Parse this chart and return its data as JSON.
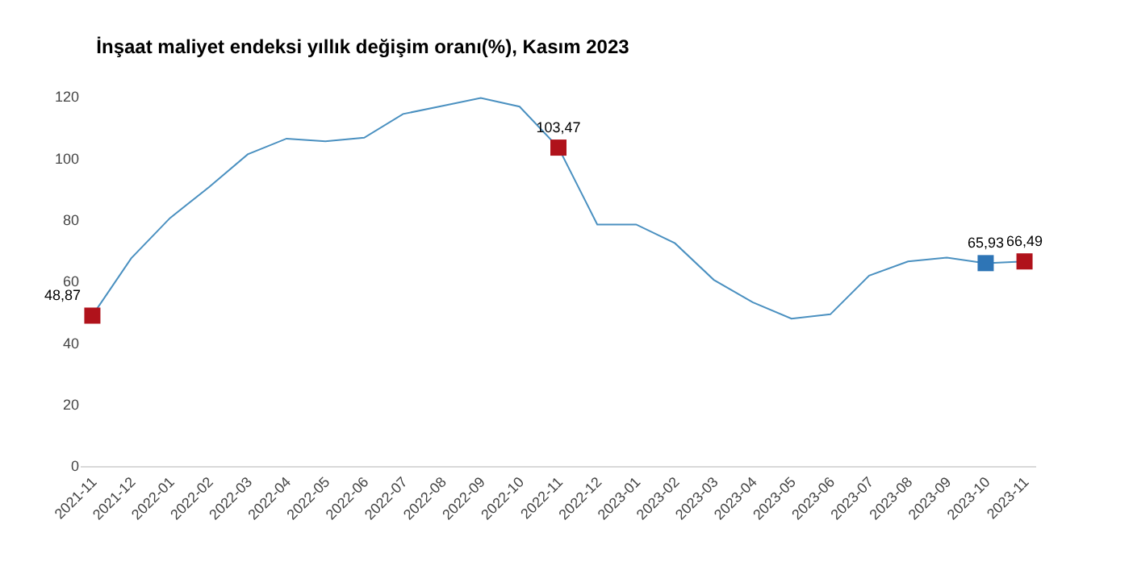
{
  "chart_data": {
    "type": "line",
    "title": "İnşaat maliyet endeksi yıllık değişim oranı(%), Kasım 2023",
    "categories": [
      "2021-11",
      "2021-12",
      "2022-01",
      "2022-02",
      "2022-03",
      "2022-04",
      "2022-05",
      "2022-06",
      "2022-07",
      "2022-08",
      "2022-09",
      "2022-10",
      "2022-11",
      "2022-12",
      "2023-01",
      "2023-02",
      "2023-03",
      "2023-04",
      "2023-05",
      "2023-06",
      "2023-07",
      "2023-08",
      "2023-09",
      "2023-10",
      "2023-11"
    ],
    "series": [
      {
        "color": "#4a90c0",
        "marker": "none",
        "values": [
          48.9,
          67.5,
          80.6,
          90.6,
          101.3,
          106.4,
          105.5,
          106.7,
          114.4,
          117,
          119.6,
          116.8,
          103.5,
          78.5,
          78.5,
          72.4,
          60.5,
          53.2,
          47.9,
          49.3,
          61.9,
          66.5,
          67.7,
          65.9,
          66.5
        ]
      },
      {
        "type": "scatter",
        "marker": "square",
        "colors": [
          "#b0121b",
          null,
          null,
          null,
          null,
          null,
          null,
          null,
          null,
          null,
          null,
          null,
          "#b0121b",
          null,
          null,
          null,
          null,
          null,
          null,
          null,
          null,
          null,
          null,
          "#2e75b6",
          "#b0121b"
        ],
        "values": [
          48.87,
          null,
          null,
          null,
          null,
          null,
          null,
          null,
          null,
          null,
          null,
          null,
          103.47,
          null,
          null,
          null,
          null,
          null,
          null,
          null,
          null,
          null,
          null,
          65.93,
          66.49
        ],
        "value_labels": [
          "48,87",
          null,
          null,
          null,
          null,
          null,
          null,
          null,
          null,
          null,
          null,
          null,
          "103,47",
          null,
          null,
          null,
          null,
          null,
          null,
          null,
          null,
          null,
          null,
          "65,93",
          "66,49"
        ]
      }
    ],
    "ylim": [
      0,
      120
    ],
    "yticks": [
      0,
      20,
      40,
      60,
      80,
      100,
      120
    ],
    "legend": false
  }
}
